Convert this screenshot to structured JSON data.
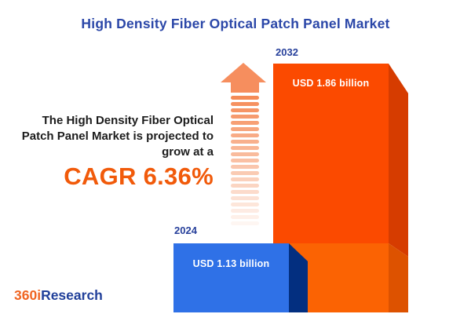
{
  "title": "High Density Fiber Optical Patch Panel Market",
  "description": {
    "line1": "The High Density Fiber Optical",
    "line2": "Patch Panel Market is projected to",
    "line3": "grow at a",
    "cagr_label": "CAGR 6.36%"
  },
  "chart_data": {
    "type": "bar",
    "title": "High Density Fiber Optical Patch Panel Market",
    "categories": [
      "2024",
      "2032"
    ],
    "values": [
      1.13,
      1.86
    ],
    "unit": "USD billion",
    "value_labels": [
      "USD 1.13 billion",
      "USD 1.86 billion"
    ],
    "cagr_percent": 6.36,
    "annotations": [
      "The High Density Fiber Optical Patch Panel Market is projected to grow at a CAGR 6.36%"
    ],
    "colors": {
      "bar_2024_front": "#2f71e7",
      "bar_2024_side": "#032f80",
      "bar_2032_front_upper": "#fb4a00",
      "bar_2032_front_lower": "#fb6303",
      "bar_2032_side_upper": "#d63c00",
      "bar_2032_side_lower": "#dd5200",
      "accent_orange": "#f15a0a",
      "accent_blue": "#2b47a8"
    },
    "legend": false,
    "axes_visible": false
  },
  "logo": {
    "part1": "360i",
    "part2": "Research"
  }
}
